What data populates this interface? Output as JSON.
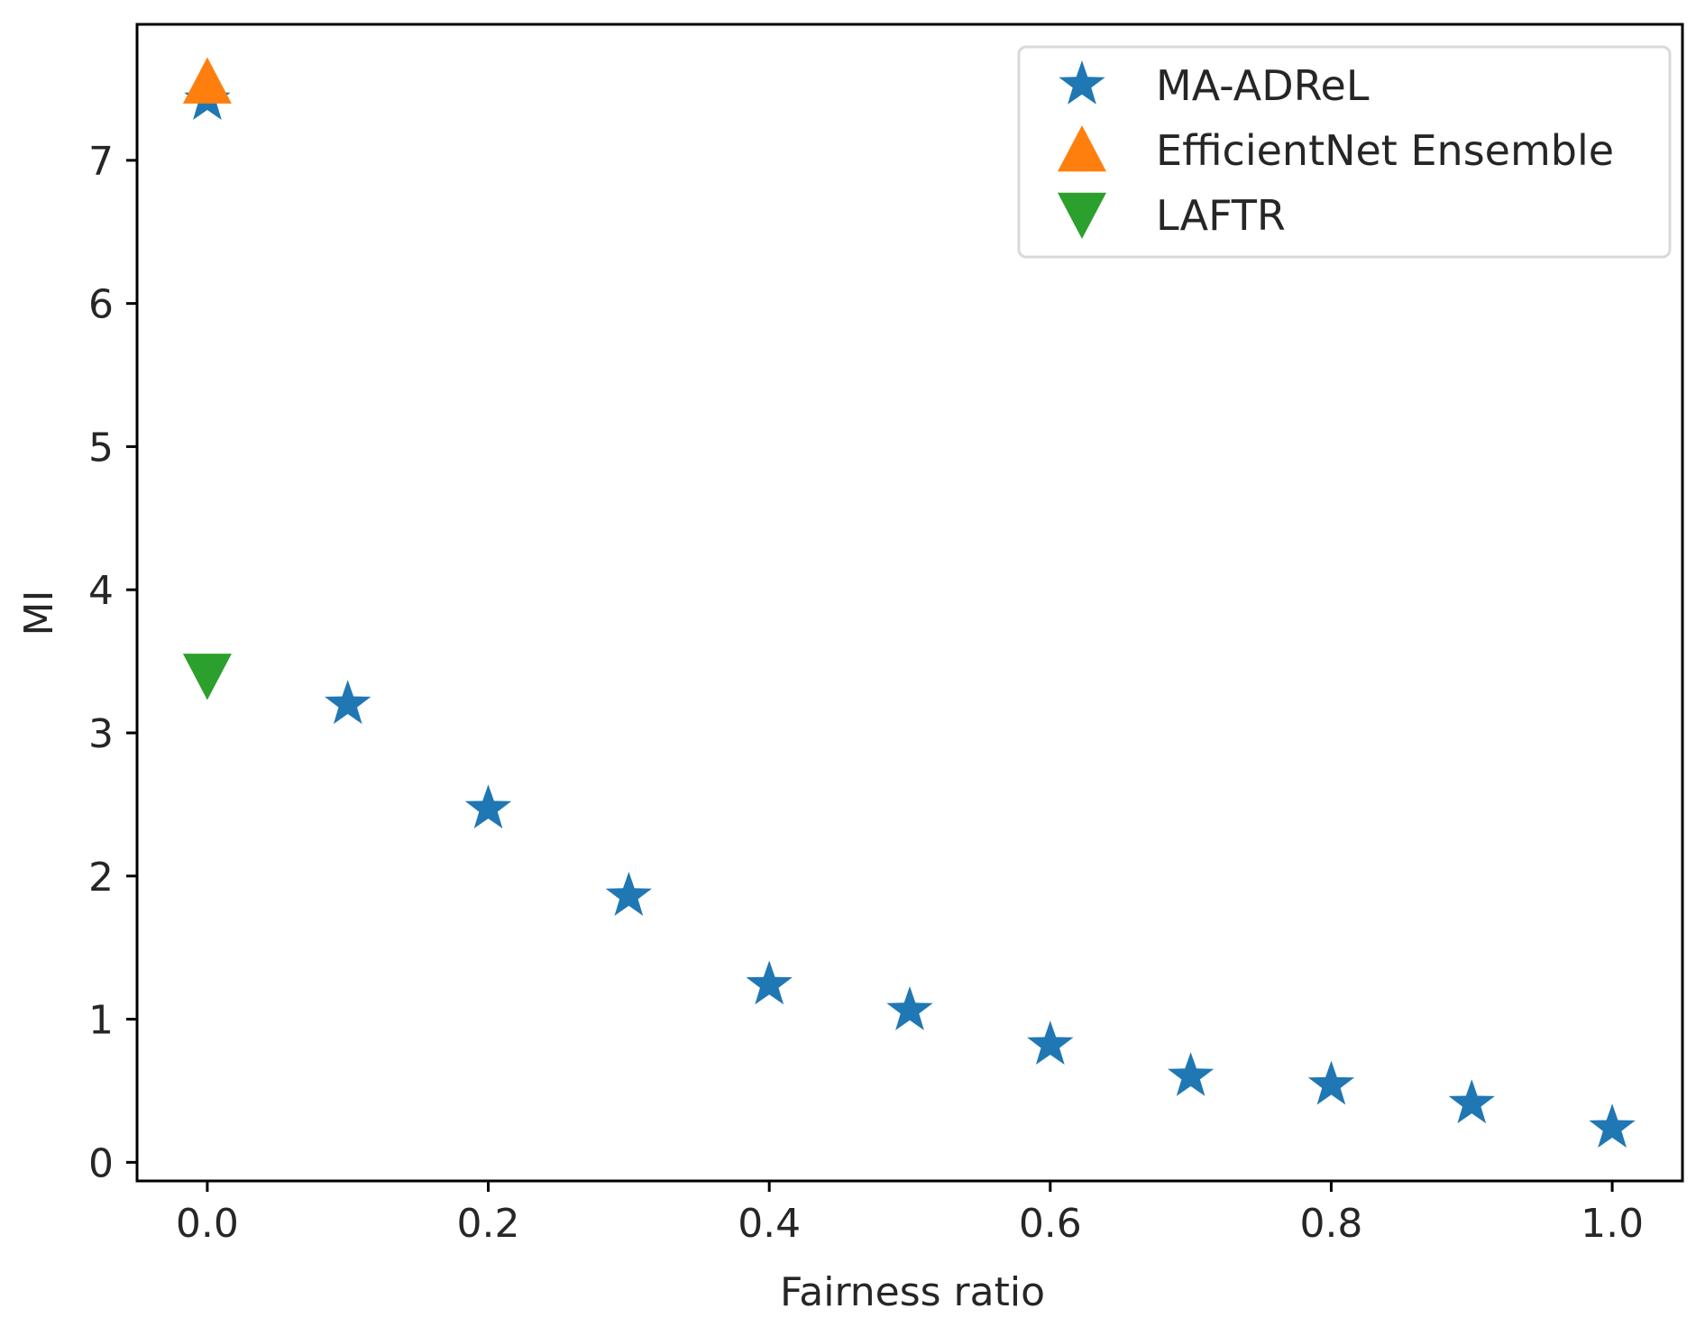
{
  "chart_data": {
    "type": "scatter",
    "title": "",
    "xlabel": "Fairness ratio",
    "ylabel": "MI",
    "xlim": [
      -0.05,
      1.05
    ],
    "ylim": [
      -0.13,
      7.95
    ],
    "xticks": [
      0.0,
      0.2,
      0.4,
      0.6,
      0.8,
      1.0
    ],
    "xtick_labels": [
      "0.0",
      "0.2",
      "0.4",
      "0.6",
      "0.8",
      "1.0"
    ],
    "yticks": [
      0,
      1,
      2,
      3,
      4,
      5,
      6,
      7
    ],
    "ytick_labels": [
      "0",
      "1",
      "2",
      "3",
      "4",
      "5",
      "6",
      "7"
    ],
    "grid": false,
    "legend_position": "top-right",
    "series": [
      {
        "name": "MA-ADReL",
        "marker": "star",
        "color": "#1f77b4",
        "x": [
          0.0,
          0.1,
          0.2,
          0.3,
          0.4,
          0.5,
          0.6,
          0.7,
          0.8,
          0.9,
          1.0
        ],
        "y": [
          7.42,
          3.2,
          2.47,
          1.86,
          1.24,
          1.06,
          0.82,
          0.6,
          0.54,
          0.41,
          0.24
        ]
      },
      {
        "name": "EfficientNet Ensemble",
        "marker": "triangle-up",
        "color": "#ff7f0e",
        "x": [
          0.0
        ],
        "y": [
          7.55
        ]
      },
      {
        "name": "LAFTR",
        "marker": "triangle-down",
        "color": "#2ca02c",
        "x": [
          0.0
        ],
        "y": [
          3.4
        ]
      }
    ]
  }
}
